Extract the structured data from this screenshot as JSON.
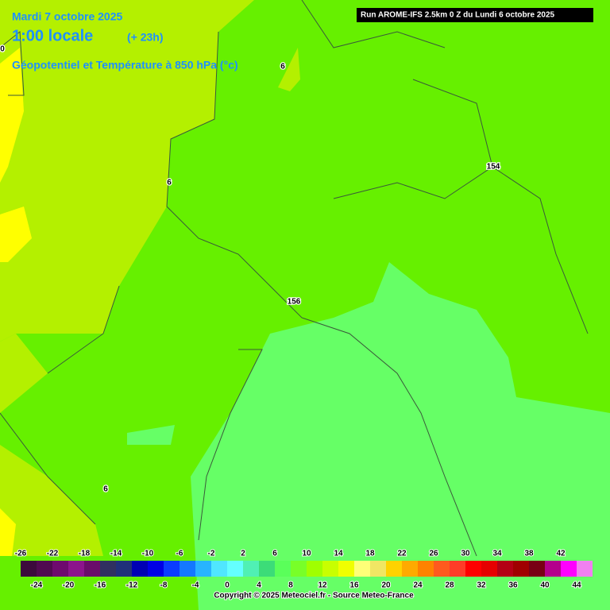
{
  "header": {
    "date": "Mardi 7 octobre 2025",
    "time": "1:00 locale",
    "lead": "(+ 23h)",
    "field": "Géopotentiel et Température à 850 hPa (°c)",
    "run": "Run AROME-IFS 2.5km 0 Z du Lundi 6 octobre 2025"
  },
  "contour_labels": [
    "0",
    "6",
    "6",
    "154",
    "156",
    "6"
  ],
  "colorbar": {
    "values": [
      -26,
      -24,
      -22,
      -20,
      -18,
      -16,
      -14,
      -12,
      -10,
      -8,
      -6,
      -4,
      -2,
      0,
      2,
      4,
      6,
      8,
      10,
      12,
      14,
      16,
      18,
      20,
      22,
      24,
      26,
      28,
      30,
      32,
      34,
      36,
      38,
      40,
      42,
      44
    ],
    "colors": [
      "#3c0a3c",
      "#500a50",
      "#6e0a6e",
      "#8c148c",
      "#6a0c6a",
      "#303060",
      "#20307a",
      "#0000b4",
      "#0000e6",
      "#0a3cff",
      "#1478ff",
      "#28b4ff",
      "#50e6ff",
      "#64ffff",
      "#50f0b4",
      "#3cdc78",
      "#5aff5a",
      "#78ff28",
      "#a0ff00",
      "#c8ff00",
      "#f0ff00",
      "#ffff78",
      "#f0e664",
      "#ffd200",
      "#ffaa00",
      "#ff8200",
      "#ff5a1e",
      "#ff3c28",
      "#ff0000",
      "#e60000",
      "#b40014",
      "#a00000",
      "#780014",
      "#b4008c",
      "#ff00ff",
      "#f080f0"
    ]
  },
  "footer": {
    "copyright": "Copyright © 2025 Meteociel.fr - Source Meteo-France"
  }
}
